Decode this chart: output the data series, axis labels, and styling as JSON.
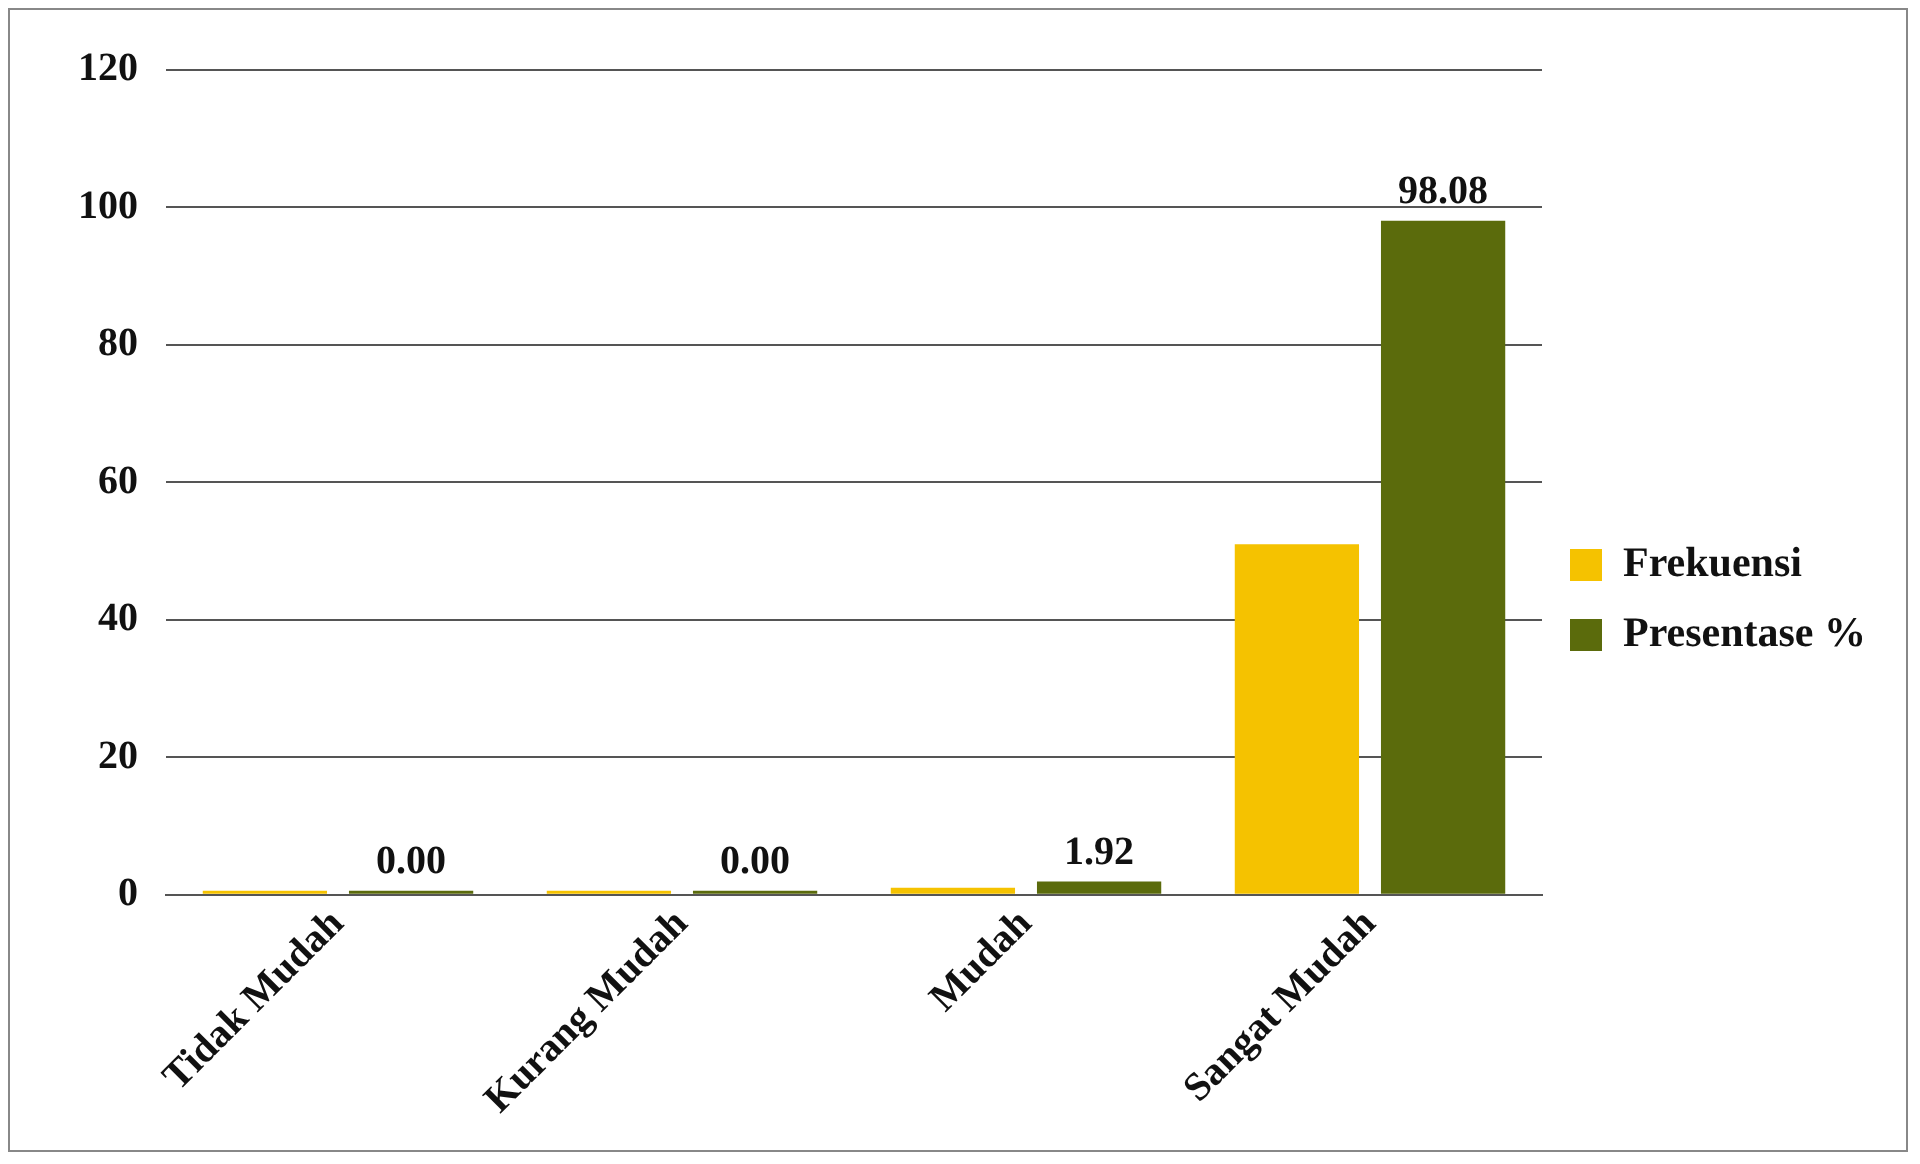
{
  "chart_data": {
    "type": "bar",
    "categories": [
      "Tidak Mudah",
      "Kurang Mudah",
      "Mudah",
      "Sangat Mudah"
    ],
    "series": [
      {
        "name": "Frekuensi",
        "color": "#f5c200",
        "values": [
          0,
          0,
          1,
          51
        ]
      },
      {
        "name": "Presentase %",
        "color": "#5b6b0c",
        "values": [
          0,
          0,
          1.92,
          98.08
        ],
        "value_labels": [
          "0.00",
          "0.00",
          "1.92",
          "98.08"
        ]
      }
    ],
    "ylim": [
      0,
      120
    ],
    "yticks": [
      0,
      20,
      40,
      60,
      80,
      100,
      120
    ],
    "grid": "y",
    "legend": "right"
  }
}
